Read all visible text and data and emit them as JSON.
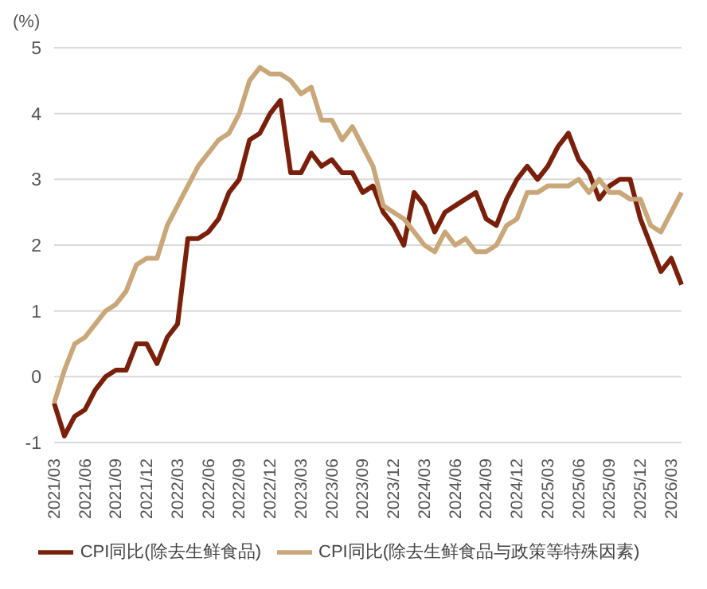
{
  "chart_data": {
    "type": "line",
    "ylabel": "(%)",
    "categories": [
      "2021/03",
      null,
      null,
      "2021/06",
      null,
      null,
      "2021/09",
      null,
      null,
      "2021/12",
      null,
      null,
      "2022/03",
      null,
      null,
      "2022/06",
      null,
      null,
      "2022/09",
      null,
      null,
      "2022/12",
      null,
      null,
      "2023/03",
      null,
      null,
      "2023/06",
      null,
      null,
      "2023/09",
      null,
      null,
      "2023/12",
      null,
      null,
      "2024/03",
      null,
      null,
      "2024/06",
      null,
      null,
      "2024/09",
      null,
      null,
      "2024/12",
      null,
      null,
      "2025/03",
      null,
      null,
      "2025/06",
      null,
      null,
      "2025/09",
      null,
      null,
      "2025/12",
      null,
      null,
      "2026/03",
      null
    ],
    "series": [
      {
        "name": "CPI同比(除去生鲜食品)",
        "color": "#7a1f0a",
        "values": [
          -0.4,
          -0.9,
          -0.6,
          -0.5,
          -0.2,
          0.0,
          0.1,
          0.1,
          0.5,
          0.5,
          0.2,
          0.6,
          0.8,
          2.1,
          2.1,
          2.2,
          2.4,
          2.8,
          3.0,
          3.6,
          3.7,
          4.0,
          4.2,
          3.1,
          3.1,
          3.4,
          3.2,
          3.3,
          3.1,
          3.1,
          2.8,
          2.9,
          2.5,
          2.3,
          2.0,
          2.8,
          2.6,
          2.2,
          2.5,
          2.6,
          2.7,
          2.8,
          2.4,
          2.3,
          2.7,
          3.0,
          3.2,
          3.0,
          3.2,
          3.5,
          3.7,
          3.3,
          3.1,
          2.7,
          2.9,
          3.0,
          3.0,
          2.4,
          2.0,
          1.6,
          1.8,
          1.4
        ]
      },
      {
        "name": "CPI同比(除去生鲜食品与政策等特殊因素)",
        "color": "#c9a779",
        "values": [
          -0.4,
          0.1,
          0.5,
          0.6,
          0.8,
          1.0,
          1.1,
          1.3,
          1.7,
          1.8,
          1.8,
          2.3,
          2.6,
          2.9,
          3.2,
          3.4,
          3.6,
          3.7,
          4.0,
          4.5,
          4.7,
          4.6,
          4.6,
          4.5,
          4.3,
          4.4,
          3.9,
          3.9,
          3.6,
          3.8,
          3.5,
          3.2,
          2.6,
          2.5,
          2.4,
          2.2,
          2.0,
          1.9,
          2.2,
          2.0,
          2.1,
          1.9,
          1.9,
          2.0,
          2.3,
          2.4,
          2.8,
          2.8,
          2.9,
          2.9,
          2.9,
          3.0,
          2.8,
          3.0,
          2.8,
          2.8,
          2.7,
          2.7,
          2.3,
          2.2,
          2.5,
          2.8
        ]
      }
    ],
    "ylim": [
      -1,
      5
    ],
    "yticks": [
      -1,
      0,
      1,
      2,
      3,
      4,
      5
    ],
    "grid": "y",
    "legend": "bottom",
    "marker": "none",
    "line_style": "solid"
  }
}
